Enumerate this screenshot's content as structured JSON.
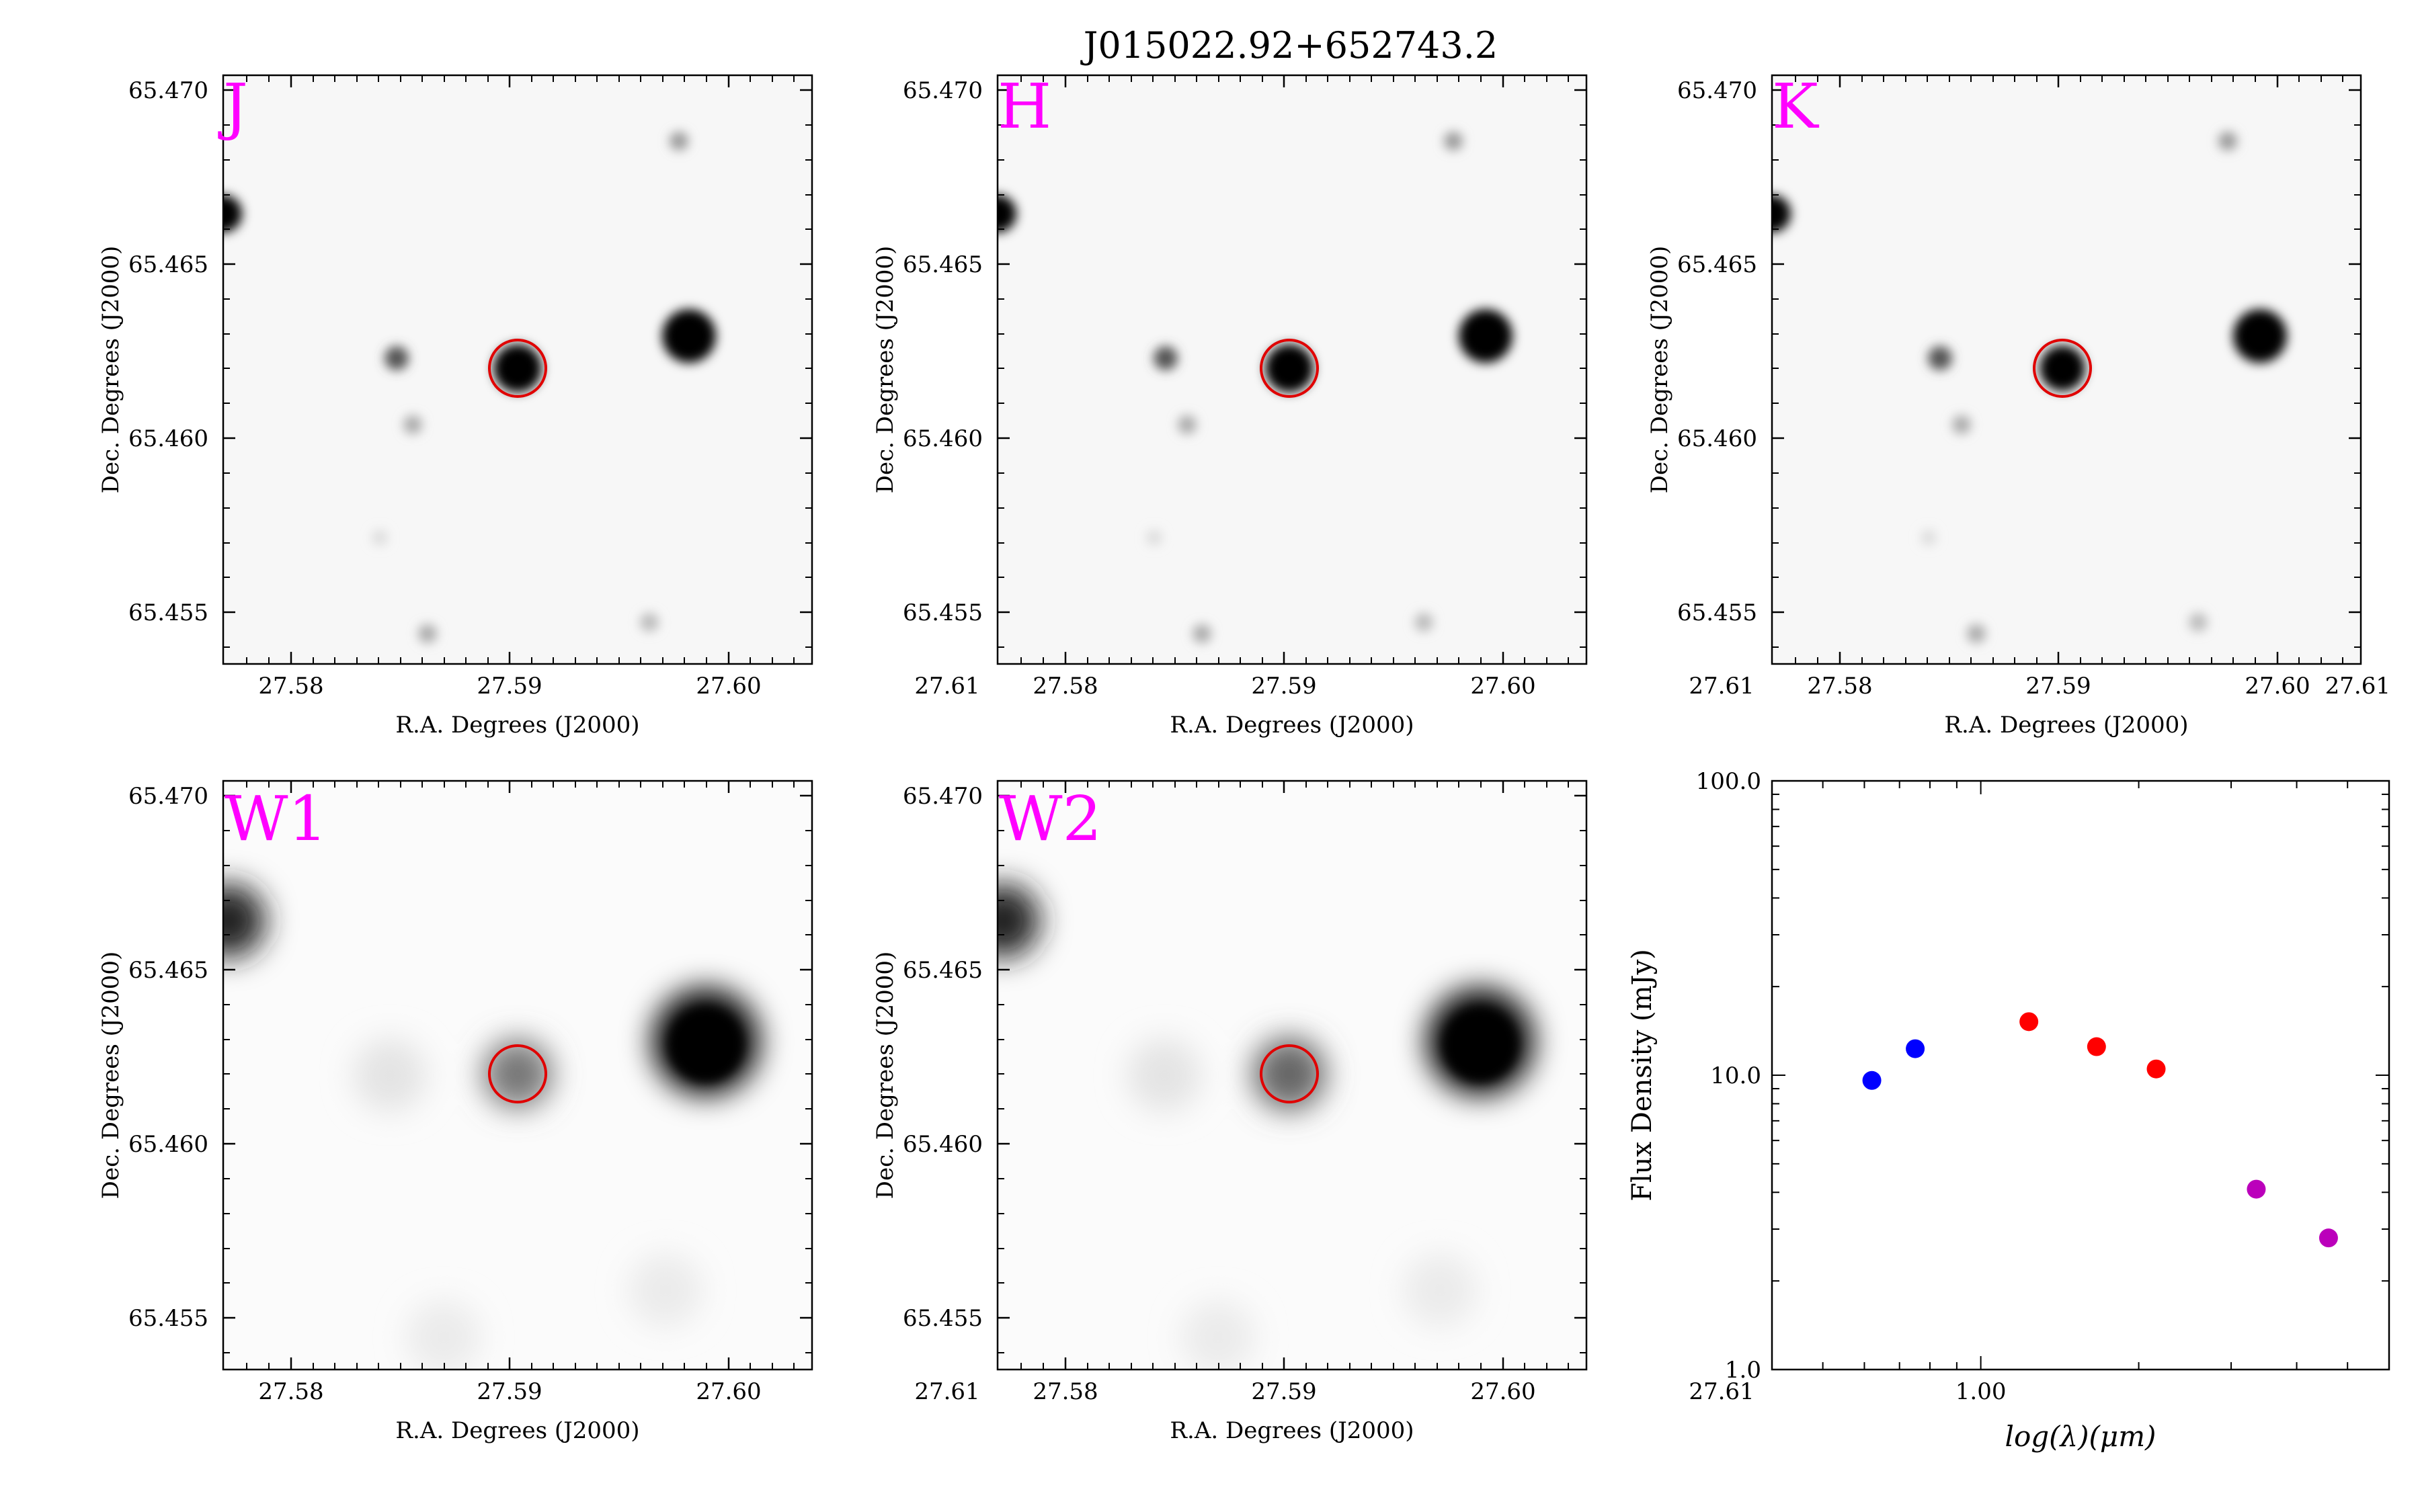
{
  "figure_title": "J015022.92+652743.2",
  "panels": [
    {
      "band": "J"
    },
    {
      "band": "H"
    },
    {
      "band": "K"
    },
    {
      "band": "W1"
    },
    {
      "band": "W2"
    }
  ],
  "axes": {
    "ra_label": "R.A. Degrees (J2000)",
    "dec_label": "Dec. Degrees (J2000)",
    "ra_ticks": [
      "27.58",
      "27.59",
      "27.60",
      "27.61"
    ],
    "dec_ticks": [
      "65.470",
      "65.465",
      "65.460",
      "65.455"
    ]
  },
  "colors": {
    "band_label": "#ff00ff",
    "aperture": "#e00000",
    "near_ir_points": "#ff0000",
    "optical_points": "#0000ff",
    "mid_ir_points": "#bb00bb"
  },
  "chart_data": {
    "type": "scatter",
    "xlabel": "log(λ)(μm)",
    "ylabel": "Flux Density (mJy)",
    "x_scale": "log",
    "y_scale": "log",
    "xlim": [
      0.4,
      6.0
    ],
    "ylim": [
      1.0,
      100.0
    ],
    "x_tick_labels": [
      "1.00"
    ],
    "y_tick_labels": [
      "1.0",
      "10.0",
      "100.0"
    ],
    "series": [
      {
        "color": "#0000ff",
        "points": [
          {
            "x": 0.62,
            "y": 9.6
          },
          {
            "x": 0.75,
            "y": 12.3
          }
        ]
      },
      {
        "color": "#ff0000",
        "points": [
          {
            "x": 1.235,
            "y": 15.2
          },
          {
            "x": 1.662,
            "y": 12.5
          },
          {
            "x": 2.159,
            "y": 10.5
          }
        ]
      },
      {
        "color": "#bb00bb",
        "points": [
          {
            "x": 3.35,
            "y": 4.1
          },
          {
            "x": 4.6,
            "y": 2.8
          }
        ]
      }
    ]
  }
}
